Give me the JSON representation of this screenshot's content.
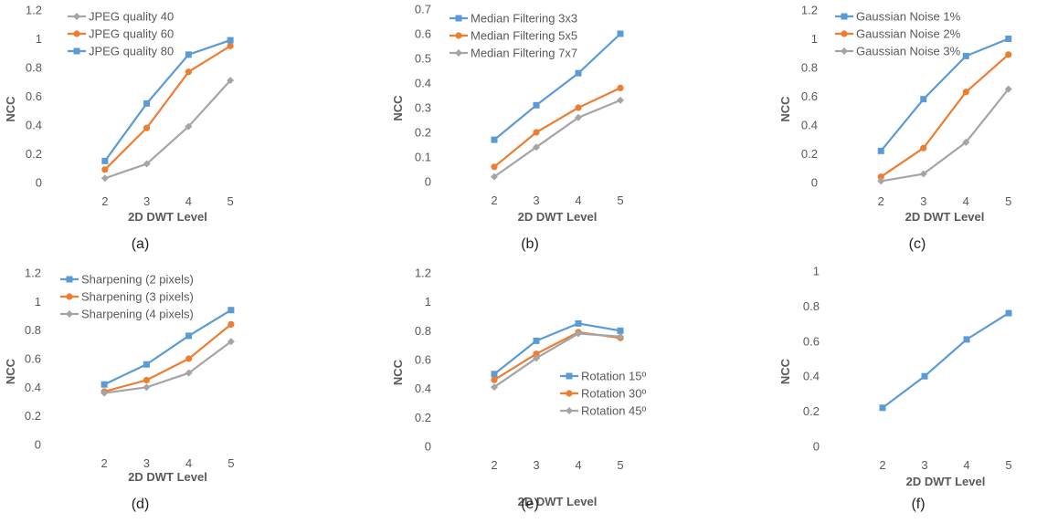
{
  "chart_data": [
    {
      "type": "line",
      "caption": "(a)",
      "xlabel": "2D DWT Level",
      "ylabel": "NCC",
      "x": [
        2,
        3,
        4,
        5
      ],
      "ylim": [
        0,
        1.2
      ],
      "yticks": [
        "0",
        "0.2",
        "0.4",
        "0.6",
        "0.8",
        "1",
        "1.2"
      ],
      "legend_position": "top-left",
      "series": [
        {
          "name": "JPEG quality 40",
          "values": [
            0.03,
            0.13,
            0.39,
            0.71
          ],
          "color": "#a5a5a5",
          "marker": "diamond"
        },
        {
          "name": "JPEG quality 60",
          "values": [
            0.09,
            0.38,
            0.77,
            0.95
          ],
          "color": "#ed7d31",
          "marker": "circle"
        },
        {
          "name": "JPEG quality 80",
          "values": [
            0.15,
            0.55,
            0.89,
            0.99
          ],
          "color": "#5b9bd5",
          "marker": "square"
        }
      ]
    },
    {
      "type": "line",
      "caption": "(b)",
      "xlabel": "2D DWT Level",
      "ylabel": "NCC",
      "x": [
        2,
        3,
        4,
        5
      ],
      "ylim": [
        0,
        0.7
      ],
      "yticks": [
        "0",
        "0.1",
        "0.2",
        "0.3",
        "0.4",
        "0.5",
        "0.6",
        "0.7"
      ],
      "legend_position": "top-left",
      "series": [
        {
          "name": "Median Filtering 3x3",
          "values": [
            0.17,
            0.31,
            0.44,
            0.6
          ],
          "color": "#5b9bd5",
          "marker": "square"
        },
        {
          "name": "Median Filtering 5x5",
          "values": [
            0.06,
            0.2,
            0.3,
            0.38
          ],
          "color": "#ed7d31",
          "marker": "circle"
        },
        {
          "name": "Median Filtering 7x7",
          "values": [
            0.02,
            0.14,
            0.26,
            0.33
          ],
          "color": "#a5a5a5",
          "marker": "diamond"
        }
      ]
    },
    {
      "type": "line",
      "caption": "(c)",
      "xlabel": "2D DWT Level",
      "ylabel": "NCC",
      "x": [
        2,
        3,
        4,
        5
      ],
      "ylim": [
        0,
        1.2
      ],
      "yticks": [
        "0",
        "0.2",
        "0.4",
        "0.6",
        "0.8",
        "1",
        "1.2"
      ],
      "legend_position": "top-left",
      "series": [
        {
          "name": "Gaussian Noise 1%",
          "values": [
            0.22,
            0.58,
            0.88,
            1.0
          ],
          "color": "#5b9bd5",
          "marker": "square"
        },
        {
          "name": "Gaussian Noise 2%",
          "values": [
            0.04,
            0.24,
            0.63,
            0.89
          ],
          "color": "#ed7d31",
          "marker": "circle"
        },
        {
          "name": "Gaussian Noise 3%",
          "values": [
            0.01,
            0.06,
            0.28,
            0.65
          ],
          "color": "#a5a5a5",
          "marker": "diamond"
        }
      ]
    },
    {
      "type": "line",
      "caption": "(d)",
      "xlabel": "2D DWT Level",
      "ylabel": "NCC",
      "x": [
        2,
        3,
        4,
        5
      ],
      "ylim": [
        0,
        1.2
      ],
      "yticks": [
        "0",
        "0.2",
        "0.4",
        "0.6",
        "0.8",
        "1",
        "1.2"
      ],
      "legend_position": "top-left",
      "series": [
        {
          "name": "Sharpening (2 pixels)",
          "values": [
            0.42,
            0.56,
            0.76,
            0.94
          ],
          "color": "#5b9bd5",
          "marker": "square"
        },
        {
          "name": "Sharpening (3 pixels)",
          "values": [
            0.37,
            0.45,
            0.6,
            0.84
          ],
          "color": "#ed7d31",
          "marker": "circle"
        },
        {
          "name": "Sharpening (4 pixels)",
          "values": [
            0.36,
            0.4,
            0.5,
            0.72
          ],
          "color": "#a5a5a5",
          "marker": "diamond"
        }
      ]
    },
    {
      "type": "line",
      "caption": "(e)",
      "xlabel": "2D DWT Level",
      "ylabel": "NCC",
      "x": [
        2,
        3,
        4,
        5
      ],
      "ylim": [
        0,
        1.2
      ],
      "yticks": [
        "0",
        "0.2",
        "0.4",
        "0.6",
        "0.8",
        "1",
        "1.2"
      ],
      "legend_position": "bottom-right",
      "series": [
        {
          "name": "Rotation 15º",
          "values": [
            0.5,
            0.73,
            0.85,
            0.8
          ],
          "color": "#5b9bd5",
          "marker": "square"
        },
        {
          "name": "Rotation 30º",
          "values": [
            0.46,
            0.64,
            0.79,
            0.75
          ],
          "color": "#ed7d31",
          "marker": "circle"
        },
        {
          "name": "Rotation 45º",
          "values": [
            0.41,
            0.61,
            0.78,
            0.76
          ],
          "color": "#a5a5a5",
          "marker": "diamond"
        }
      ]
    },
    {
      "type": "line",
      "caption": "(f)",
      "xlabel": "2D DWT Level",
      "ylabel": "NCC",
      "x": [
        2,
        3,
        4,
        5
      ],
      "ylim": [
        0,
        1
      ],
      "yticks": [
        "0",
        "0.2",
        "0.4",
        "0.6",
        "0.8",
        "1"
      ],
      "legend_position": "none",
      "series": [
        {
          "values": [
            0.22,
            0.4,
            0.61,
            0.76
          ],
          "color": "#5b9bd5",
          "marker": "square"
        }
      ]
    }
  ]
}
